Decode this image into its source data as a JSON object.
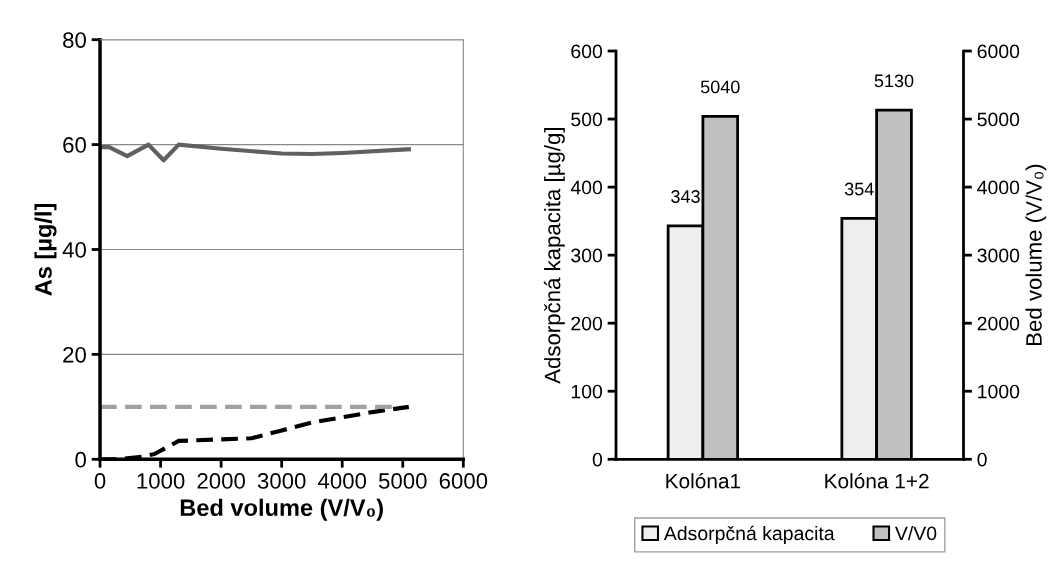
{
  "chart_data": [
    {
      "type": "line",
      "xlabel": "Bed volume (V/V₀)",
      "ylabel": "As [µg/l]",
      "xlim": [
        0,
        6000
      ],
      "xticks": [
        0,
        1000,
        2000,
        3000,
        4000,
        5000,
        6000
      ],
      "ylim": [
        0,
        80
      ],
      "yticks": [
        0,
        20,
        40,
        60,
        80
      ],
      "grid": "y",
      "legend": false,
      "series": [
        {
          "color": "#606060",
          "line_style": "solid",
          "x": [
            0,
            150,
            450,
            800,
            1050,
            1300,
            2000,
            3000,
            3500,
            4000,
            5100
          ],
          "values": [
            59.5,
            59.5,
            57.8,
            60,
            57,
            60,
            59.2,
            58.3,
            58.2,
            58.4,
            59.1
          ]
        },
        {
          "color": "#000000",
          "line_style": "dashed",
          "x": [
            0,
            300,
            700,
            900,
            1300,
            2500,
            3000,
            3500,
            4000,
            4500,
            5100
          ],
          "values": [
            0,
            0,
            0.5,
            1,
            3.5,
            4,
            5.5,
            7,
            8,
            9,
            10
          ]
        },
        {
          "color": "#a0a0a0",
          "line_style": "dashed",
          "x": [
            0,
            4950
          ],
          "values": [
            10,
            10
          ]
        }
      ]
    },
    {
      "type": "bar",
      "categories": [
        "Kolóna1",
        "Kolóna 1+2"
      ],
      "ylabel": "Adsorpčná kapacita [µg/g]",
      "y2label": "Bed volume (V/V₀)",
      "ylim": [
        0,
        600
      ],
      "yticks": [
        0,
        100,
        200,
        300,
        400,
        500,
        600
      ],
      "y2lim": [
        0,
        6000
      ],
      "y2ticks": [
        0,
        1000,
        2000,
        3000,
        4000,
        5000,
        6000
      ],
      "data_labels": true,
      "legend": "bottom",
      "grid": false,
      "series": [
        {
          "name": "Adsorpčná kapacita",
          "color": "#eeeeee",
          "values": [
            343,
            354
          ]
        },
        {
          "name": "V/V0",
          "color": "#c0c0c0",
          "values": [
            5040,
            5130
          ],
          "axis": "y2"
        }
      ]
    }
  ]
}
